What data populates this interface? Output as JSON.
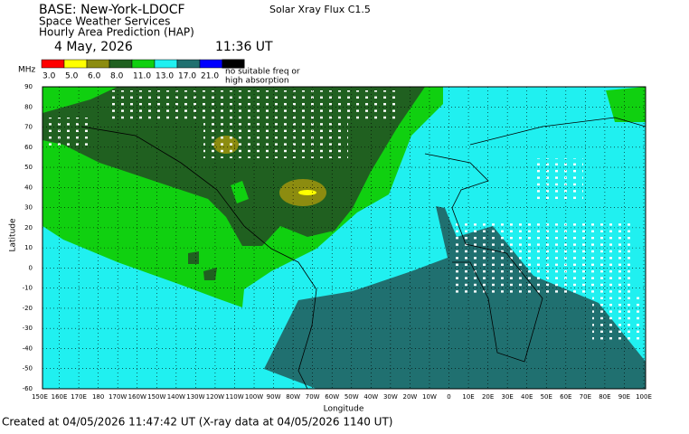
{
  "header": {
    "base": "BASE: New-York-LDOCF",
    "org": "Space Weather Services",
    "product": "Hourly Area Prediction (HAP)",
    "date": "4 May, 2026",
    "time": "11:36 UT",
    "flux": "Solar Xray Flux C1.5"
  },
  "legend": {
    "unit": "MHz",
    "items": [
      {
        "label": "3.0",
        "color": "#ff0000"
      },
      {
        "label": "5.0",
        "color": "#ffff00"
      },
      {
        "label": "6.0",
        "color": "#8c8c10"
      },
      {
        "label": "8.0",
        "color": "#206020"
      },
      {
        "label": "11.0",
        "color": "#10d010"
      },
      {
        "label": "13.0",
        "color": "#20f0f0"
      },
      {
        "label": "17.0",
        "color": "#207070"
      },
      {
        "label": "21.0",
        "color": "#0000ff"
      }
    ],
    "no_freq_1": "no suitable freq or",
    "no_freq_2": "high absorption"
  },
  "map": {
    "y_label": "Latitude",
    "x_label": "Longitude",
    "lat_ticks": [
      "90",
      "80",
      "70",
      "60",
      "50",
      "40",
      "30",
      "20",
      "10",
      "0",
      "-10",
      "-20",
      "-30",
      "-40",
      "-50",
      "-60"
    ],
    "lon_ticks": [
      "150E",
      "160E",
      "170E",
      "180",
      "170W",
      "160W",
      "150W",
      "140W",
      "130W",
      "120W",
      "110W",
      "100W",
      "90W",
      "80W",
      "70W",
      "60W",
      "50W",
      "40W",
      "30W",
      "20W",
      "10W",
      "0",
      "10E",
      "20E",
      "30E",
      "40E",
      "50E",
      "60E",
      "70E",
      "80E",
      "90E",
      "100E"
    ]
  },
  "footer": "Created at 04/05/2026 11:47:42 UT (X-ray data at 04/05/2026 1140 UT)"
}
